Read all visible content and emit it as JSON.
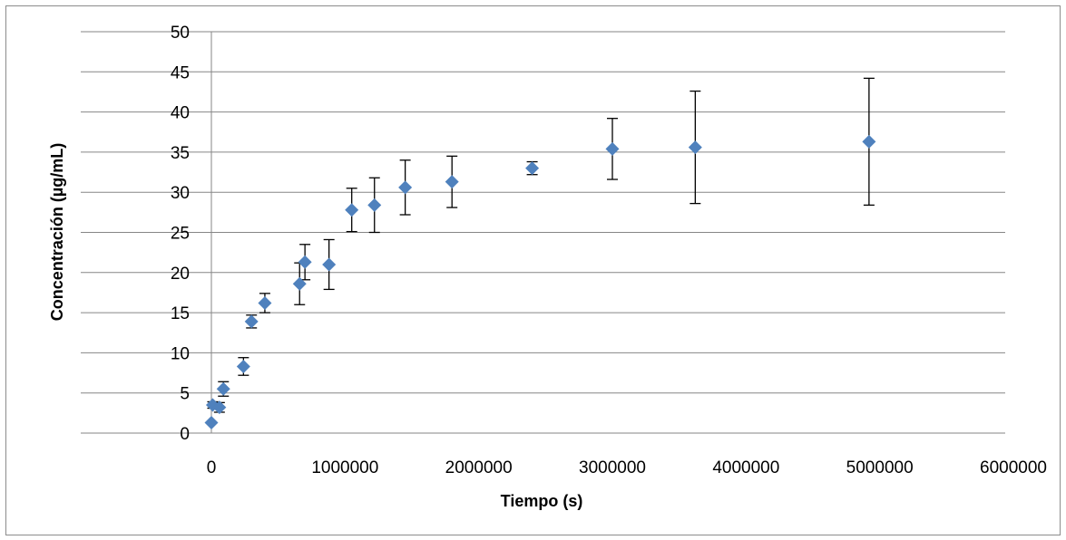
{
  "chart_data": {
    "type": "scatter",
    "title": "",
    "xlabel": "Tiempo (s)",
    "ylabel": "Concentración (µg/mL)",
    "xlim": [
      0,
      6000000
    ],
    "ylim": [
      0,
      50
    ],
    "xticks": [
      0,
      1000000,
      2000000,
      3000000,
      4000000,
      5000000,
      6000000
    ],
    "yticks": [
      0,
      5,
      10,
      15,
      20,
      25,
      30,
      35,
      40,
      45,
      50
    ],
    "grid": "horizontal",
    "marker": "diamond",
    "marker_color": "#4f81bd",
    "errorbar_color": "#000000",
    "points": [
      {
        "x": 0,
        "y": 1.3,
        "err": 0
      },
      {
        "x": 10000,
        "y": 3.5,
        "err": 0.4
      },
      {
        "x": 60000,
        "y": 3.2,
        "err": 0.6
      },
      {
        "x": 90000,
        "y": 5.5,
        "err": 0.9
      },
      {
        "x": 240000,
        "y": 8.3,
        "err": 1.1
      },
      {
        "x": 300000,
        "y": 13.9,
        "err": 0.8
      },
      {
        "x": 400000,
        "y": 16.2,
        "err": 1.2
      },
      {
        "x": 660000,
        "y": 18.6,
        "err": 2.6
      },
      {
        "x": 700000,
        "y": 21.3,
        "err": 2.2
      },
      {
        "x": 880000,
        "y": 21.0,
        "err": 3.1
      },
      {
        "x": 1050000,
        "y": 27.8,
        "err": 2.7
      },
      {
        "x": 1220000,
        "y": 28.4,
        "err": 3.4
      },
      {
        "x": 1450000,
        "y": 30.6,
        "err": 3.4
      },
      {
        "x": 1800000,
        "y": 31.3,
        "err": 3.2
      },
      {
        "x": 2400000,
        "y": 33.0,
        "err": 0.8
      },
      {
        "x": 3000000,
        "y": 35.4,
        "err": 3.8
      },
      {
        "x": 3620000,
        "y": 35.6,
        "err": 7.0
      },
      {
        "x": 4920000,
        "y": 36.3,
        "err": 7.9
      }
    ]
  }
}
